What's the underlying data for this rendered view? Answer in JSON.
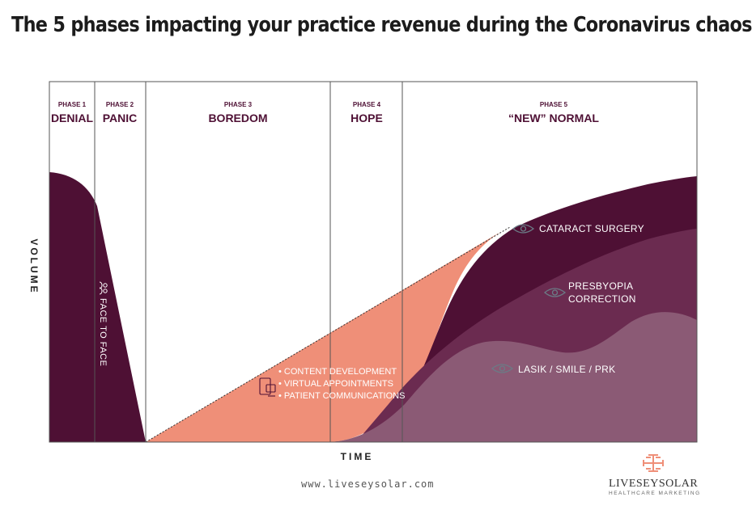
{
  "title": "The 5 phases impacting your practice revenue during the Coronavirus chaos",
  "phases": [
    {
      "number": "PHASE 1",
      "name": "DENIAL"
    },
    {
      "number": "PHASE 2",
      "name": "PANIC"
    },
    {
      "number": "PHASE 3",
      "name": "BOREDOM"
    },
    {
      "number": "PHASE 4",
      "name": "HOPE"
    },
    {
      "number": "PHASE 5",
      "name": "“NEW” NORMAL"
    }
  ],
  "axes": {
    "y_label": "VOLUME",
    "x_label": "TIME"
  },
  "labels": {
    "face_to_face": "FACE TO FACE",
    "cataract": "CATARACT SURGERY",
    "presbyopia_line1": "PRESBYOPIA",
    "presbyopia_line2": "CORRECTION",
    "lasik": "LASIK / SMILE / PRK",
    "virtual_items": [
      "• CONTENT DEVELOPMENT",
      "• VIRTUAL APPOINTMENTS",
      "• PATIENT COMMUNICATIONS"
    ]
  },
  "colors": {
    "dark_plum": "#4e1034",
    "mid_plum": "#6b2b50",
    "light_plum": "#8b5a75",
    "salmon": "#ef8f78",
    "eye_icon": "#6b7b86"
  },
  "footer": {
    "url": "www.liveseysolar.com",
    "logo_part1": "LIVESEY",
    "logo_part2": "SOLAR",
    "logo_tagline": "HEALTHCARE MARKETING"
  }
}
